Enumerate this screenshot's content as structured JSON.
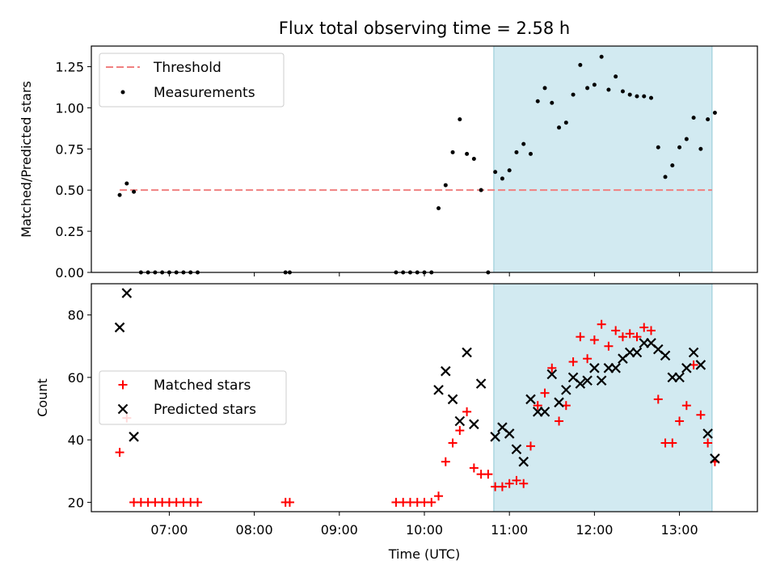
{
  "title": "Flux total observing time = 2.58 h",
  "colors": {
    "threshold": "#f08080",
    "measurements": "#000000",
    "matched": "#ff0000",
    "predicted": "#000000",
    "shade": "#add8e6"
  },
  "chart_data": [
    {
      "type": "scatter",
      "ylabel": "Matched/Predicted stars",
      "ylim": [
        0,
        1.375
      ],
      "xlim": [
        "06:05",
        "13:55"
      ],
      "yticks": [
        "0.00",
        "0.25",
        "0.50",
        "0.75",
        "1.00",
        "1.25"
      ],
      "shaded_region": [
        "10:49",
        "13:23"
      ],
      "legend": [
        "Threshold",
        "Measurements"
      ],
      "threshold": {
        "name": "Threshold",
        "y": 0.5,
        "x_range": [
          "06:25",
          "13:23"
        ]
      },
      "measurements": {
        "name": "Measurements",
        "points": [
          [
            "06:25",
            0.47
          ],
          [
            "06:30",
            0.54
          ],
          [
            "06:35",
            0.49
          ],
          [
            "06:40",
            0.0
          ],
          [
            "06:45",
            0.0
          ],
          [
            "06:50",
            0.0
          ],
          [
            "06:55",
            0.0
          ],
          [
            "07:00",
            0.0
          ],
          [
            "07:05",
            0.0
          ],
          [
            "07:10",
            0.0
          ],
          [
            "07:15",
            0.0
          ],
          [
            "07:20",
            0.0
          ],
          [
            "08:22",
            0.0
          ],
          [
            "08:25",
            0.0
          ],
          [
            "09:40",
            0.0
          ],
          [
            "09:45",
            0.0
          ],
          [
            "09:50",
            0.0
          ],
          [
            "09:55",
            0.0
          ],
          [
            "10:00",
            0.0
          ],
          [
            "10:05",
            0.0
          ],
          [
            "10:10",
            0.39
          ],
          [
            "10:15",
            0.53
          ],
          [
            "10:20",
            0.73
          ],
          [
            "10:25",
            0.93
          ],
          [
            "10:30",
            0.72
          ],
          [
            "10:35",
            0.69
          ],
          [
            "10:40",
            0.5
          ],
          [
            "10:45",
            0.0
          ],
          [
            "10:50",
            0.61
          ],
          [
            "10:55",
            0.57
          ],
          [
            "11:00",
            0.62
          ],
          [
            "11:05",
            0.73
          ],
          [
            "11:10",
            0.78
          ],
          [
            "11:15",
            0.72
          ],
          [
            "11:20",
            1.04
          ],
          [
            "11:25",
            1.12
          ],
          [
            "11:30",
            1.03
          ],
          [
            "11:35",
            0.88
          ],
          [
            "11:40",
            0.91
          ],
          [
            "11:45",
            1.08
          ],
          [
            "11:50",
            1.26
          ],
          [
            "11:55",
            1.12
          ],
          [
            "12:00",
            1.14
          ],
          [
            "12:05",
            1.31
          ],
          [
            "12:10",
            1.11
          ],
          [
            "12:15",
            1.19
          ],
          [
            "12:20",
            1.1
          ],
          [
            "12:25",
            1.08
          ],
          [
            "12:30",
            1.07
          ],
          [
            "12:35",
            1.07
          ],
          [
            "12:40",
            1.06
          ],
          [
            "12:45",
            0.76
          ],
          [
            "12:50",
            0.58
          ],
          [
            "12:55",
            0.65
          ],
          [
            "13:00",
            0.76
          ],
          [
            "13:05",
            0.81
          ],
          [
            "13:10",
            0.94
          ],
          [
            "13:15",
            0.75
          ],
          [
            "13:20",
            0.93
          ],
          [
            "13:25",
            0.97
          ]
        ]
      }
    },
    {
      "type": "scatter",
      "xlabel": "Time (UTC)",
      "ylabel": "Count",
      "ylim": [
        17,
        90
      ],
      "xlim": [
        "06:05",
        "13:55"
      ],
      "xticks": [
        "07:00",
        "08:00",
        "09:00",
        "10:00",
        "11:00",
        "12:00",
        "13:00"
      ],
      "yticks": [
        20,
        40,
        60,
        80
      ],
      "shaded_region": [
        "10:49",
        "13:23"
      ],
      "legend": [
        "Matched stars",
        "Predicted stars"
      ],
      "series": [
        {
          "name": "Matched stars",
          "marker": "+",
          "points": [
            [
              "06:25",
              36
            ],
            [
              "06:30",
              47
            ],
            [
              "06:35",
              20
            ],
            [
              "06:40",
              20
            ],
            [
              "06:45",
              20
            ],
            [
              "06:50",
              20
            ],
            [
              "06:55",
              20
            ],
            [
              "07:00",
              20
            ],
            [
              "07:05",
              20
            ],
            [
              "07:10",
              20
            ],
            [
              "07:15",
              20
            ],
            [
              "07:20",
              20
            ],
            [
              "08:22",
              20
            ],
            [
              "08:25",
              20
            ],
            [
              "09:40",
              20
            ],
            [
              "09:45",
              20
            ],
            [
              "09:50",
              20
            ],
            [
              "09:55",
              20
            ],
            [
              "10:00",
              20
            ],
            [
              "10:05",
              20
            ],
            [
              "10:10",
              22
            ],
            [
              "10:15",
              33
            ],
            [
              "10:20",
              39
            ],
            [
              "10:25",
              43
            ],
            [
              "10:30",
              49
            ],
            [
              "10:35",
              31
            ],
            [
              "10:40",
              29
            ],
            [
              "10:45",
              29
            ],
            [
              "10:50",
              25
            ],
            [
              "10:55",
              25
            ],
            [
              "11:00",
              26
            ],
            [
              "11:05",
              27
            ],
            [
              "11:10",
              26
            ],
            [
              "11:15",
              38
            ],
            [
              "11:20",
              51
            ],
            [
              "11:25",
              55
            ],
            [
              "11:30",
              63
            ],
            [
              "11:35",
              46
            ],
            [
              "11:40",
              51
            ],
            [
              "11:45",
              65
            ],
            [
              "11:50",
              73
            ],
            [
              "11:55",
              66
            ],
            [
              "12:00",
              72
            ],
            [
              "12:05",
              77
            ],
            [
              "12:10",
              70
            ],
            [
              "12:15",
              75
            ],
            [
              "12:20",
              73
            ],
            [
              "12:25",
              74
            ],
            [
              "12:30",
              73
            ],
            [
              "12:35",
              76
            ],
            [
              "12:40",
              75
            ],
            [
              "12:45",
              53
            ],
            [
              "12:50",
              39
            ],
            [
              "12:55",
              39
            ],
            [
              "13:00",
              46
            ],
            [
              "13:05",
              51
            ],
            [
              "13:10",
              64
            ],
            [
              "13:15",
              48
            ],
            [
              "13:20",
              39
            ],
            [
              "13:25",
              33
            ]
          ]
        },
        {
          "name": "Predicted stars",
          "marker": "x",
          "points": [
            [
              "06:25",
              76
            ],
            [
              "06:30",
              87
            ],
            [
              "06:35",
              41
            ],
            [
              "10:10",
              56
            ],
            [
              "10:15",
              62
            ],
            [
              "10:20",
              53
            ],
            [
              "10:25",
              46
            ],
            [
              "10:30",
              68
            ],
            [
              "10:35",
              45
            ],
            [
              "10:40",
              58
            ],
            [
              "10:50",
              41
            ],
            [
              "10:55",
              44
            ],
            [
              "11:00",
              42
            ],
            [
              "11:05",
              37
            ],
            [
              "11:10",
              33
            ],
            [
              "11:15",
              53
            ],
            [
              "11:20",
              49
            ],
            [
              "11:25",
              49
            ],
            [
              "11:30",
              61
            ],
            [
              "11:35",
              52
            ],
            [
              "11:40",
              56
            ],
            [
              "11:45",
              60
            ],
            [
              "11:50",
              58
            ],
            [
              "11:55",
              59
            ],
            [
              "12:00",
              63
            ],
            [
              "12:05",
              59
            ],
            [
              "12:10",
              63
            ],
            [
              "12:15",
              63
            ],
            [
              "12:20",
              66
            ],
            [
              "12:25",
              68
            ],
            [
              "12:30",
              68
            ],
            [
              "12:35",
              71
            ],
            [
              "12:40",
              71
            ],
            [
              "12:45",
              69
            ],
            [
              "12:50",
              67
            ],
            [
              "12:55",
              60
            ],
            [
              "13:00",
              60
            ],
            [
              "13:05",
              63
            ],
            [
              "13:10",
              68
            ],
            [
              "13:15",
              64
            ],
            [
              "13:20",
              42
            ],
            [
              "13:25",
              34
            ]
          ]
        }
      ]
    }
  ]
}
